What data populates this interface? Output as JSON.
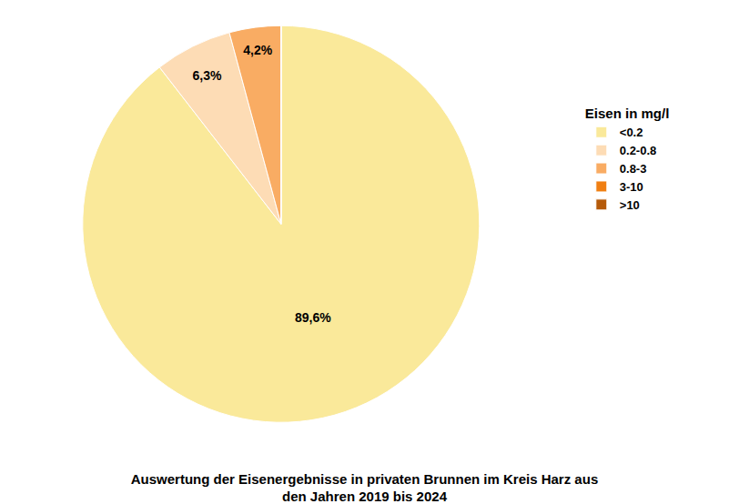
{
  "chart_data": {
    "type": "pie",
    "title": "Auswertung der Eisenergebnisse in privaten Brunnen im Kreis Harz aus den Jahren 2019 bis 2024",
    "legend_title": "Eisen in mg/l",
    "categories": [
      "<0.2",
      "0.2-0.8",
      "0.8-3",
      "3-10",
      ">10"
    ],
    "values": [
      89.6,
      6.3,
      4.2,
      0,
      0
    ],
    "value_labels": [
      "89,6%",
      "6,3%",
      "4,2%",
      null,
      null
    ],
    "colors": [
      "#fae99a",
      "#fddcb5",
      "#f9ac63",
      "#f07f12",
      "#b55a0a"
    ],
    "data_labels": true,
    "legend": "right"
  }
}
